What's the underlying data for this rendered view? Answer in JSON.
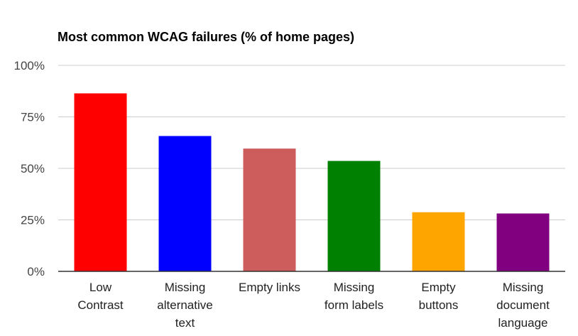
{
  "chart_data": {
    "type": "bar",
    "title": "Most common WCAG failures (% of home pages)",
    "xlabel": "",
    "ylabel": "",
    "ylim": [
      0,
      100
    ],
    "yticks": [
      "0%",
      "25%",
      "50%",
      "75%",
      "100%"
    ],
    "ytick_values": [
      0,
      25,
      50,
      75,
      100
    ],
    "categories": [
      [
        "Low",
        "Contrast"
      ],
      [
        "Missing",
        "alternative",
        "text"
      ],
      [
        "Empty links"
      ],
      [
        "Missing",
        "form labels"
      ],
      [
        "Empty",
        "buttons"
      ],
      [
        "Missing",
        "document",
        "language"
      ]
    ],
    "values": [
      86.4,
      65.7,
      59.6,
      53.6,
      28.7,
      28.1
    ],
    "colors": [
      "#ff0000",
      "#0000ff",
      "#cd5c5c",
      "#008000",
      "#ffa500",
      "#800080"
    ],
    "grid": true,
    "legend": "none"
  }
}
